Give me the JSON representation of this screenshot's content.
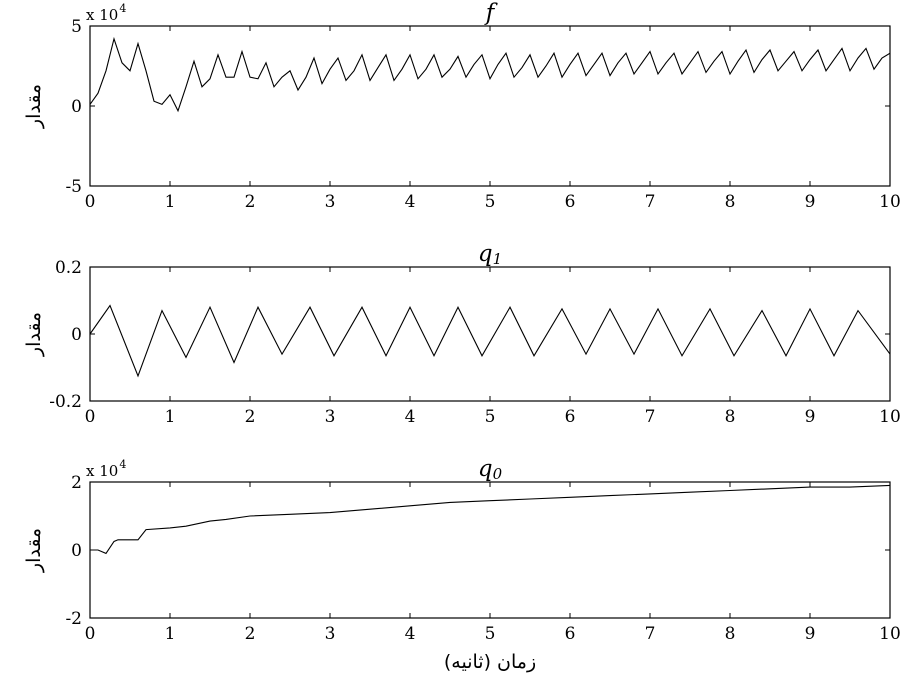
{
  "chart_data": [
    {
      "type": "line",
      "title": "f",
      "title_sub": "",
      "ylabel": "مقدار",
      "multiplier_base": "x 10",
      "multiplier_exp": "4",
      "xlim": [
        0,
        10
      ],
      "ylim": [
        -5,
        5
      ],
      "xticks": [
        "0",
        "1",
        "2",
        "3",
        "4",
        "5",
        "6",
        "7",
        "8",
        "9",
        "10"
      ],
      "yticks": [
        "-5",
        "0",
        "5"
      ],
      "series": [
        {
          "x": [
            0,
            0.1,
            0.2,
            0.3,
            0.4,
            0.5,
            0.6,
            0.7,
            0.8,
            0.9,
            1.0,
            1.1,
            1.2,
            1.3,
            1.4,
            1.5,
            1.6,
            1.7,
            1.8,
            1.9,
            2.0,
            2.1,
            2.2,
            2.3,
            2.4,
            2.5,
            2.6,
            2.7,
            2.8,
            2.9,
            3.0,
            3.1,
            3.2,
            3.3,
            3.4,
            3.5,
            3.6,
            3.7,
            3.8,
            3.9,
            4.0,
            4.1,
            4.2,
            4.3,
            4.4,
            4.5,
            4.6,
            4.7,
            4.8,
            4.9,
            5.0,
            5.1,
            5.2,
            5.3,
            5.4,
            5.5,
            5.6,
            5.7,
            5.8,
            5.9,
            6.0,
            6.1,
            6.2,
            6.3,
            6.4,
            6.5,
            6.6,
            6.7,
            6.8,
            6.9,
            7.0,
            7.1,
            7.2,
            7.3,
            7.4,
            7.5,
            7.6,
            7.7,
            7.8,
            7.9,
            8.0,
            8.1,
            8.2,
            8.3,
            8.4,
            8.5,
            8.6,
            8.7,
            8.8,
            8.9,
            9.0,
            9.1,
            9.2,
            9.3,
            9.4,
            9.5,
            9.6,
            9.7,
            9.8,
            9.9,
            10.0
          ],
          "values": [
            0.1,
            0.8,
            2.2,
            4.2,
            2.7,
            2.2,
            3.9,
            2.2,
            0.3,
            0.1,
            0.7,
            -0.3,
            1.2,
            2.8,
            1.2,
            1.7,
            3.2,
            1.8,
            1.8,
            3.4,
            1.8,
            1.7,
            2.7,
            1.2,
            1.8,
            2.2,
            1.0,
            1.8,
            3.0,
            1.4,
            2.3,
            3.0,
            1.6,
            2.2,
            3.2,
            1.6,
            2.4,
            3.2,
            1.6,
            2.3,
            3.2,
            1.7,
            2.3,
            3.2,
            1.8,
            2.3,
            3.1,
            1.8,
            2.6,
            3.2,
            1.7,
            2.6,
            3.3,
            1.8,
            2.4,
            3.2,
            1.8,
            2.5,
            3.3,
            1.8,
            2.6,
            3.3,
            1.9,
            2.6,
            3.3,
            1.9,
            2.7,
            3.3,
            2.0,
            2.7,
            3.4,
            2.0,
            2.7,
            3.3,
            2.0,
            2.7,
            3.4,
            2.1,
            2.8,
            3.4,
            2.0,
            2.8,
            3.5,
            2.1,
            2.9,
            3.5,
            2.2,
            2.8,
            3.4,
            2.2,
            2.9,
            3.5,
            2.2,
            2.9,
            3.6,
            2.2,
            3.0,
            3.6,
            2.3,
            3.0,
            3.3
          ]
        }
      ]
    },
    {
      "type": "line",
      "title": "q",
      "title_sub": "1",
      "ylabel": "مقدار",
      "multiplier_base": "",
      "multiplier_exp": "",
      "xlim": [
        0,
        10
      ],
      "ylim": [
        -0.2,
        0.2
      ],
      "xticks": [
        "0",
        "1",
        "2",
        "3",
        "4",
        "5",
        "6",
        "7",
        "8",
        "9",
        "10"
      ],
      "yticks": [
        "-0.2",
        "0",
        "0.2"
      ],
      "series": [
        {
          "x": [
            0,
            0.25,
            0.6,
            0.9,
            1.2,
            1.5,
            1.8,
            2.1,
            2.4,
            2.75,
            3.05,
            3.4,
            3.7,
            4.0,
            4.3,
            4.6,
            4.9,
            5.25,
            5.55,
            5.9,
            6.2,
            6.5,
            6.8,
            7.1,
            7.4,
            7.75,
            8.05,
            8.4,
            8.7,
            9.0,
            9.3,
            9.6,
            10.0
          ],
          "values": [
            0,
            0.085,
            -0.125,
            0.07,
            -0.07,
            0.08,
            -0.085,
            0.08,
            -0.06,
            0.08,
            -0.065,
            0.08,
            -0.065,
            0.08,
            -0.065,
            0.08,
            -0.065,
            0.08,
            -0.065,
            0.075,
            -0.06,
            0.075,
            -0.06,
            0.075,
            -0.065,
            0.075,
            -0.065,
            0.07,
            -0.065,
            0.075,
            -0.065,
            0.07,
            -0.06
          ]
        }
      ]
    },
    {
      "type": "line",
      "title": "q",
      "title_sub": "0",
      "ylabel": "مقدار",
      "multiplier_base": "x 10",
      "multiplier_exp": "4",
      "xlim": [
        0,
        10
      ],
      "ylim": [
        -2,
        2
      ],
      "xticks": [
        "0",
        "1",
        "2",
        "3",
        "4",
        "5",
        "6",
        "7",
        "8",
        "9",
        "10"
      ],
      "yticks": [
        "-2",
        "0",
        "2"
      ],
      "xlabel": "زمان (ثانیه)",
      "series": [
        {
          "x": [
            0,
            0.1,
            0.2,
            0.3,
            0.35,
            0.6,
            0.7,
            1.0,
            1.2,
            1.5,
            1.7,
            2.0,
            2.5,
            3.0,
            3.5,
            4.0,
            4.5,
            5.0,
            5.5,
            6.0,
            6.5,
            7.0,
            7.5,
            8.0,
            8.5,
            9.0,
            9.5,
            10.0
          ],
          "values": [
            0,
            0,
            -0.1,
            0.25,
            0.3,
            0.3,
            0.6,
            0.65,
            0.7,
            0.85,
            0.9,
            1.0,
            1.05,
            1.1,
            1.2,
            1.3,
            1.4,
            1.45,
            1.5,
            1.55,
            1.6,
            1.65,
            1.7,
            1.75,
            1.8,
            1.85,
            1.85,
            1.9
          ]
        }
      ]
    }
  ]
}
